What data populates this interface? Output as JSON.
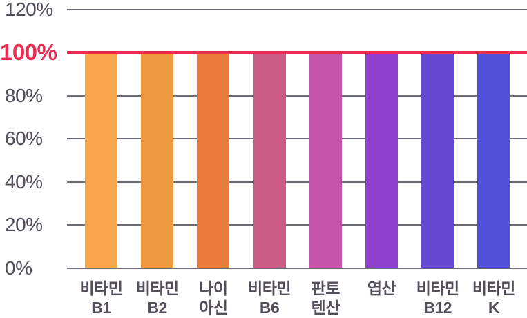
{
  "chart_data": {
    "type": "bar",
    "title": "",
    "xlabel": "",
    "ylabel": "",
    "categories": [
      [
        "비타민",
        "B1"
      ],
      [
        "비타민",
        "B2"
      ],
      [
        "나이",
        "아신"
      ],
      [
        "비타민",
        "B6"
      ],
      [
        "판토",
        "텐산"
      ],
      [
        "엽산"
      ],
      [
        "비타민",
        "B12"
      ],
      [
        "비타민",
        "K"
      ]
    ],
    "values": [
      100,
      100,
      100,
      100,
      100,
      100,
      100,
      100
    ],
    "unit": "%",
    "ylim": [
      0,
      120
    ],
    "y_ticks": [
      120,
      100,
      80,
      60,
      40,
      20,
      0
    ],
    "y_tick_labels": [
      "120%",
      "100%",
      "80%",
      "60%",
      "40%",
      "20%",
      "0%"
    ],
    "grid": true,
    "legend": "none",
    "highlight_value": 100,
    "highlight_label": "100%",
    "bar_colors": [
      "#f8a74d",
      "#ee983f",
      "#e97a3c",
      "#cb5c84",
      "#c455ac",
      "#8e3fcc",
      "#6549d0",
      "#5250d9"
    ],
    "colors": {
      "axis_text": "#544e5a",
      "grid_line": "#544e5a",
      "highlight": "#ea2b52"
    }
  }
}
